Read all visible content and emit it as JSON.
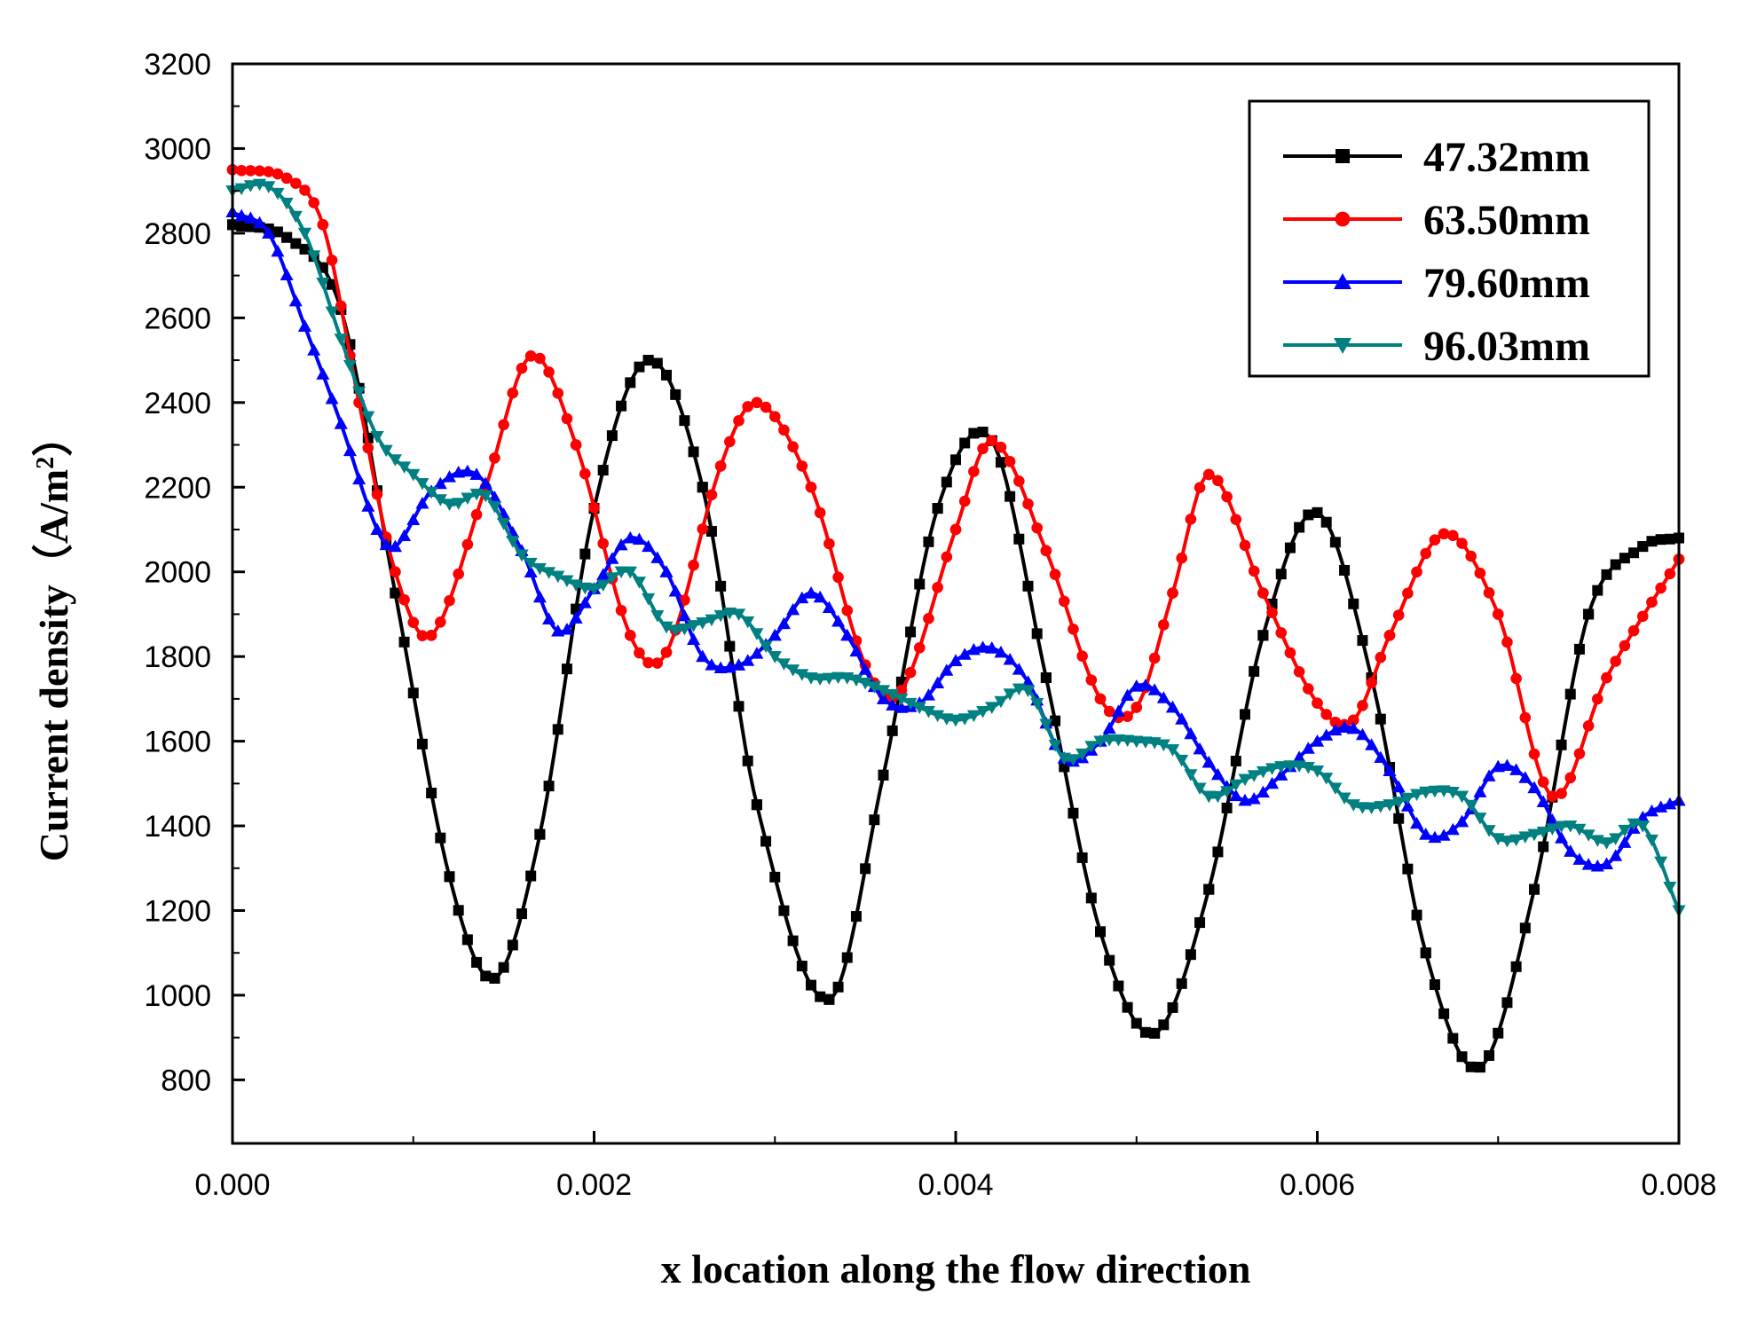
{
  "chart_data": {
    "type": "line",
    "title": "",
    "xlabel": "x location along the flow direction",
    "ylabel_main": "Current density",
    "ylabel_unit": "（A/m",
    "ylabel_sup": "2",
    "ylabel_close": "）",
    "xlim": [
      0,
      0.008
    ],
    "ylim": [
      650,
      3200
    ],
    "xticks": [
      0,
      0.002,
      0.004,
      0.006,
      0.008
    ],
    "xtick_labels": [
      "0.000",
      "0.002",
      "0.004",
      "0.006",
      "0.008"
    ],
    "yticks": [
      800,
      1000,
      1200,
      1400,
      1600,
      1800,
      2000,
      2200,
      2400,
      2600,
      2800,
      3000,
      3200
    ],
    "ytick_labels": [
      "800",
      "1000",
      "1200",
      "1400",
      "1600",
      "1800",
      "2000",
      "2200",
      "2400",
      "2600",
      "2800",
      "3000",
      "3200"
    ],
    "legend_position": "top-right",
    "series": [
      {
        "name": "47.32mm",
        "color": "#000000",
        "marker": "square",
        "x": [
          0,
          0.0003,
          0.0006,
          0.0009,
          0.0012,
          0.00145,
          0.0017,
          0.002,
          0.0023,
          0.0026,
          0.0029,
          0.0033,
          0.0036,
          0.0039,
          0.0042,
          0.0045,
          0.0048,
          0.0051,
          0.0054,
          0.0057,
          0.006,
          0.0063,
          0.0066,
          0.0069,
          0.0072,
          0.0075,
          0.0078,
          0.008
        ],
        "y": [
          2820,
          2790,
          2620,
          1950,
          1280,
          1040,
          1380,
          2150,
          2500,
          2200,
          1450,
          990,
          1520,
          2150,
          2310,
          1750,
          1150,
          910,
          1250,
          1850,
          2140,
          1750,
          1100,
          830,
          1250,
          1900,
          2060,
          2080
        ]
      },
      {
        "name": "63.50mm",
        "color": "#ff0000",
        "marker": "circle",
        "x": [
          0,
          0.0003,
          0.0005,
          0.0007,
          0.0009,
          0.0011,
          0.0014,
          0.00165,
          0.0019,
          0.0022,
          0.0024,
          0.0027,
          0.0029,
          0.0032,
          0.0035,
          0.0037,
          0.004,
          0.0042,
          0.0045,
          0.0048,
          0.005,
          0.0052,
          0.0054,
          0.0057,
          0.006,
          0.0062,
          0.0064,
          0.0067,
          0.007,
          0.0073,
          0.0076,
          0.008
        ],
        "y": [
          2950,
          2930,
          2820,
          2400,
          2000,
          1850,
          2200,
          2510,
          2300,
          1850,
          1810,
          2250,
          2400,
          2200,
          1780,
          1720,
          2100,
          2310,
          2050,
          1700,
          1680,
          1950,
          2230,
          1950,
          1690,
          1650,
          1850,
          2090,
          1900,
          1470,
          1750,
          2030
        ]
      },
      {
        "name": "79.60mm",
        "color": "#0000ff",
        "marker": "triangle-up",
        "x": [
          0,
          0.0002,
          0.0004,
          0.0006,
          0.0008,
          0.0009,
          0.0011,
          0.00135,
          0.0016,
          0.0018,
          0.002,
          0.0022,
          0.0024,
          0.0026,
          0.0028,
          0.003,
          0.0032,
          0.0034,
          0.0036,
          0.0038,
          0.004,
          0.0042,
          0.0044,
          0.0046,
          0.0048,
          0.005,
          0.0052,
          0.0054,
          0.0056,
          0.0058,
          0.006,
          0.0062,
          0.0064,
          0.0066,
          0.0068,
          0.007,
          0.0072,
          0.0074,
          0.0076,
          0.0078,
          0.008
        ],
        "y": [
          2850,
          2800,
          2580,
          2350,
          2100,
          2060,
          2190,
          2230,
          2050,
          1860,
          1960,
          2080,
          2000,
          1800,
          1780,
          1850,
          1950,
          1850,
          1700,
          1690,
          1790,
          1820,
          1740,
          1560,
          1600,
          1730,
          1680,
          1550,
          1460,
          1520,
          1600,
          1630,
          1530,
          1380,
          1410,
          1540,
          1490,
          1340,
          1310,
          1420,
          1460
        ]
      },
      {
        "name": "96.03mm",
        "color": "#008080",
        "marker": "triangle-down",
        "x": [
          0,
          0.0002,
          0.0004,
          0.0006,
          0.0008,
          0.001,
          0.0012,
          0.0014,
          0.0016,
          0.0018,
          0.002,
          0.0022,
          0.0024,
          0.0026,
          0.0028,
          0.003,
          0.0032,
          0.0034,
          0.0036,
          0.0038,
          0.004,
          0.0042,
          0.0044,
          0.0046,
          0.0048,
          0.005,
          0.0052,
          0.0054,
          0.0056,
          0.0058,
          0.006,
          0.0062,
          0.0064,
          0.0066,
          0.0068,
          0.007,
          0.0072,
          0.0074,
          0.0076,
          0.0078,
          0.008
        ],
        "y": [
          2900,
          2910,
          2800,
          2550,
          2320,
          2230,
          2160,
          2180,
          2040,
          1990,
          1960,
          2000,
          1870,
          1880,
          1900,
          1800,
          1750,
          1750,
          1720,
          1680,
          1650,
          1680,
          1720,
          1560,
          1600,
          1600,
          1580,
          1470,
          1510,
          1540,
          1530,
          1450,
          1450,
          1480,
          1470,
          1370,
          1380,
          1400,
          1360,
          1400,
          1200
        ]
      }
    ]
  }
}
